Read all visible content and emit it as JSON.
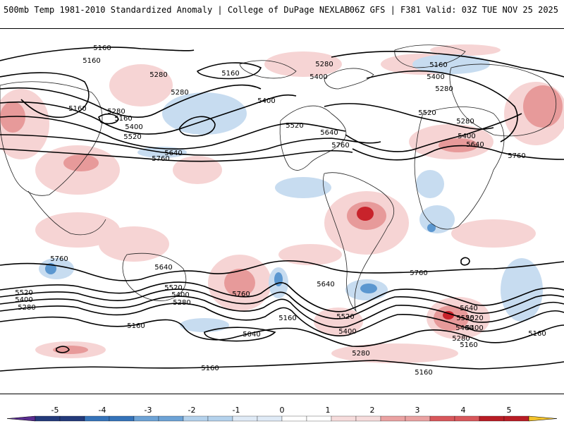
{
  "header": {
    "title_left": "500mb Temp 1981-2010 Standardized Anomaly | College of DuPage NEXLAB",
    "title_right": "06Z GFS | F381 Valid: 03Z TUE NOV 25 2025"
  },
  "colorbar": {
    "ticks": [
      "-5",
      "-4",
      "-3",
      "-2",
      "-1",
      "0",
      "1",
      "2",
      "3",
      "4",
      "5"
    ],
    "colors": [
      "#5a2d91",
      "#233a7a",
      "#3573b9",
      "#6da3d6",
      "#b4d2ec",
      "#dfeaf6",
      "#ffffff",
      "#f6dcdc",
      "#eaa2a2",
      "#d8575b",
      "#b81d25",
      "#7d0a12",
      "#f2c22b"
    ]
  },
  "contour_labels": [
    "5160",
    "5160",
    "5160",
    "5280",
    "5280",
    "5160",
    "5280",
    "5400",
    "5400",
    "5520",
    "5640",
    "5760",
    "5280",
    "5400",
    "5160",
    "5280",
    "5520",
    "5400",
    "5640",
    "5760",
    "5160",
    "5520",
    "5400",
    "5280",
    "5640",
    "5760",
    "5640",
    "5760",
    "5760",
    "5520",
    "5400",
    "5280",
    "5640",
    "5520",
    "5400",
    "5280",
    "5520",
    "5400",
    "5160",
    "5040",
    "5160",
    "5520",
    "5400",
    "5280",
    "5640",
    "5520",
    "5400",
    "5280",
    "5160",
    "5160",
    "5160",
    "5160",
    "5760"
  ]
}
